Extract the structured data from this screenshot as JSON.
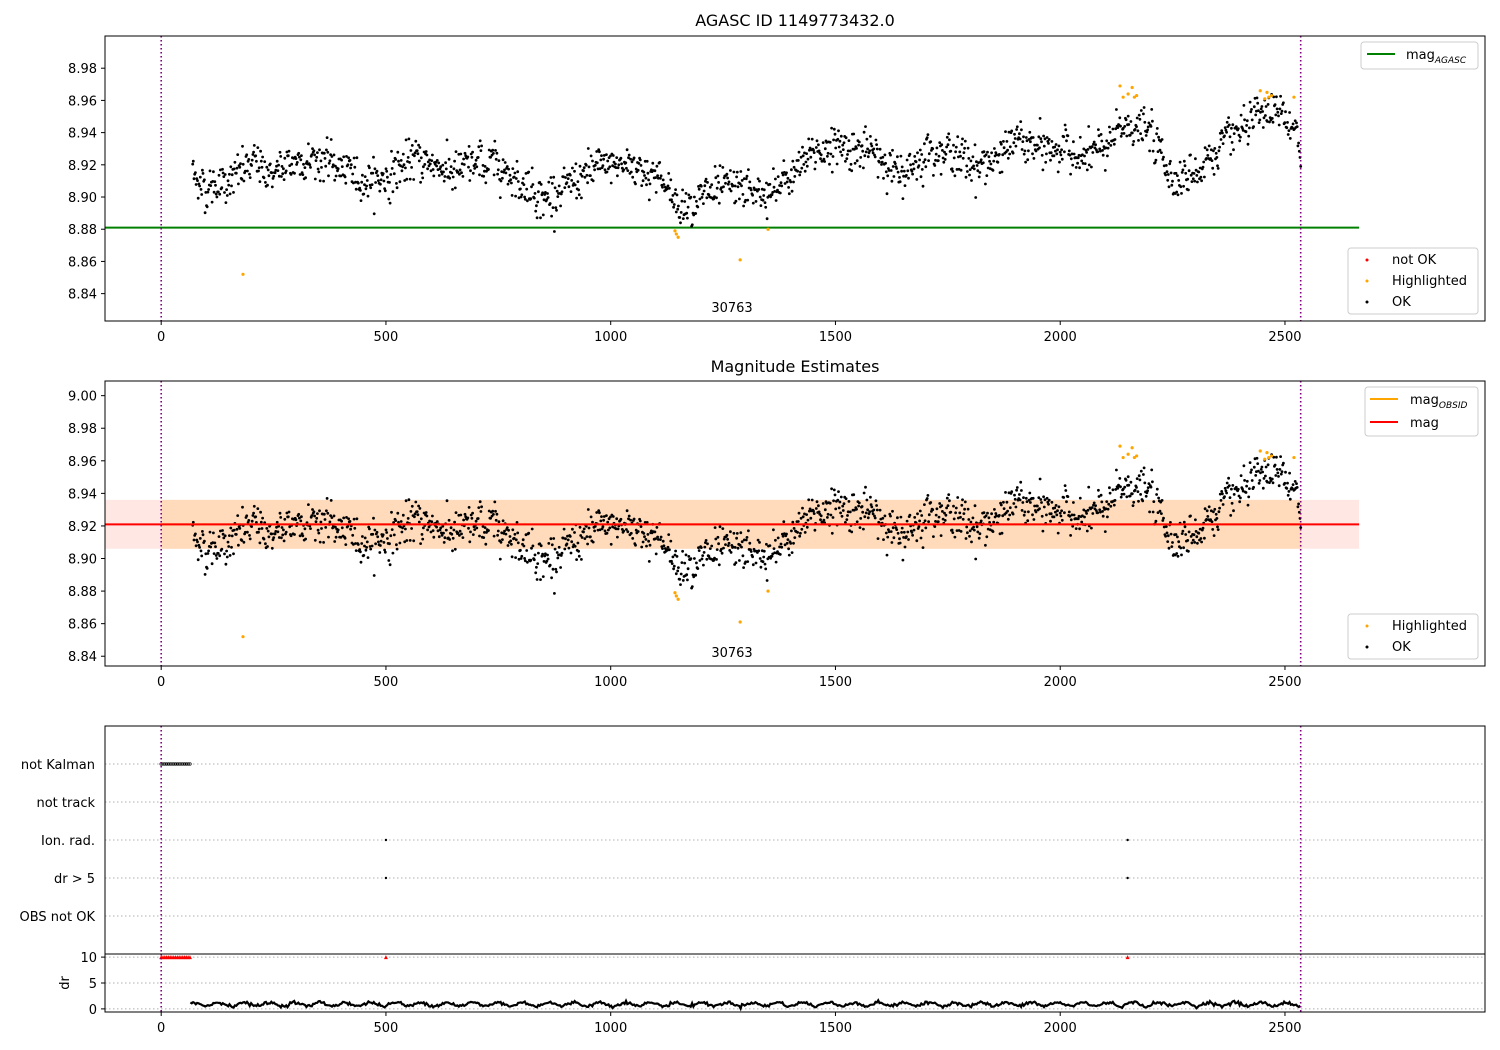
{
  "figure": {
    "title": "AGASC ID 1149773432.0",
    "colors": {
      "ok": "#000000",
      "highlighted": "#ffa500",
      "not_ok": "#ff0000",
      "agasc_line": "#008000",
      "mag_line": "#ff0000",
      "obsid_line": "#ffa500",
      "band_inner": "#ffdab9",
      "band_outer": "#ffe4e1",
      "vline": "#800080",
      "grid": "#b0b0b0"
    }
  },
  "chart_data": [
    {
      "id": "agasc",
      "type": "scatter",
      "title": "AGASC ID 1149773432.0",
      "xlim": [
        -125,
        2945
      ],
      "ylim": [
        8.823,
        9.0
      ],
      "xticks": [
        0,
        500,
        1000,
        1500,
        2000,
        2500
      ],
      "yticks": [
        8.84,
        8.86,
        8.88,
        8.9,
        8.92,
        8.94,
        8.96,
        8.98
      ],
      "ytick_labels": [
        "8.84",
        "8.86",
        "8.88",
        "8.90",
        "8.92",
        "8.94",
        "8.96",
        "8.98"
      ],
      "vlines": [
        0,
        2535
      ],
      "hline": {
        "y": 8.881,
        "x_end": 2665,
        "label": "mag",
        "label_sub": "AGASC"
      },
      "obsid_label": {
        "text": "30763",
        "x": 1265,
        "y": 8.829
      },
      "legend_lines": [
        {
          "label": "mag",
          "sub": "AGASC",
          "color": "#008000"
        }
      ],
      "legend_points": [
        {
          "label": "not OK",
          "color": "#ff0000"
        },
        {
          "label": "Highlighted",
          "color": "#ffa500"
        },
        {
          "label": "OK",
          "color": "#000000"
        }
      ],
      "series_ok_profile": {
        "x": [
          70,
          100,
          150,
          200,
          250,
          300,
          350,
          400,
          450,
          500,
          550,
          600,
          650,
          700,
          750,
          800,
          850,
          900,
          950,
          1000,
          1050,
          1100,
          1150,
          1200,
          1250,
          1300,
          1350,
          1400,
          1450,
          1500,
          1550,
          1600,
          1650,
          1700,
          1750,
          1800,
          1850,
          1900,
          1950,
          2000,
          2050,
          2100,
          2150,
          2200,
          2250,
          2300,
          2350,
          2400,
          2450,
          2500,
          2535
        ],
        "y": [
          8.915,
          8.905,
          8.91,
          8.92,
          8.915,
          8.922,
          8.925,
          8.918,
          8.91,
          8.912,
          8.922,
          8.922,
          8.915,
          8.92,
          8.92,
          8.91,
          8.9,
          8.905,
          8.915,
          8.92,
          8.92,
          8.915,
          8.895,
          8.9,
          8.905,
          8.905,
          8.9,
          8.912,
          8.928,
          8.932,
          8.93,
          8.925,
          8.912,
          8.928,
          8.93,
          8.92,
          8.922,
          8.935,
          8.93,
          8.93,
          8.925,
          8.93,
          8.945,
          8.94,
          8.912,
          8.915,
          8.93,
          8.94,
          8.95,
          8.952,
          8.928
        ],
        "count": 1600,
        "scatter_sd": 0.008
      },
      "highlighted_points": [
        {
          "x": 182,
          "y": 8.852
        },
        {
          "x": 1143,
          "y": 8.879
        },
        {
          "x": 1146,
          "y": 8.877
        },
        {
          "x": 1150,
          "y": 8.875
        },
        {
          "x": 1288,
          "y": 8.861
        },
        {
          "x": 1350,
          "y": 8.88
        },
        {
          "x": 2133,
          "y": 8.969
        },
        {
          "x": 2140,
          "y": 8.962
        },
        {
          "x": 2151,
          "y": 8.964
        },
        {
          "x": 2160,
          "y": 8.968
        },
        {
          "x": 2165,
          "y": 8.962
        },
        {
          "x": 2170,
          "y": 8.963
        },
        {
          "x": 2445,
          "y": 8.966
        },
        {
          "x": 2455,
          "y": 8.961
        },
        {
          "x": 2460,
          "y": 8.965
        },
        {
          "x": 2464,
          "y": 8.962
        },
        {
          "x": 2470,
          "y": 8.963
        },
        {
          "x": 2520,
          "y": 8.962
        }
      ]
    },
    {
      "id": "mag",
      "type": "scatter",
      "title": "Magnitude Estimates",
      "xlim": [
        -125,
        2945
      ],
      "ylim": [
        8.834,
        9.009
      ],
      "xticks": [
        0,
        500,
        1000,
        1500,
        2000,
        2500
      ],
      "yticks": [
        8.84,
        8.86,
        8.88,
        8.9,
        8.92,
        8.94,
        8.96,
        8.98,
        9.0
      ],
      "ytick_labels": [
        "8.84",
        "8.86",
        "8.88",
        "8.90",
        "8.92",
        "8.94",
        "8.96",
        "8.98",
        "9.00"
      ],
      "vlines": [
        0,
        2535
      ],
      "band_outer": {
        "y0": 8.906,
        "y1": 8.936,
        "x0": -125,
        "x1": 2665
      },
      "band_inner": {
        "y0": 8.906,
        "y1": 8.936,
        "x0": 0,
        "x1": 2535
      },
      "mag_line": {
        "y": 8.921,
        "x0": -125,
        "x1": 2665
      },
      "obsid_line": {
        "y": 8.921,
        "x0": 0,
        "x1": 2535
      },
      "obsid_label": {
        "text": "30763",
        "x": 1265,
        "y": 8.84
      },
      "legend_lines": [
        {
          "label": "mag",
          "sub": "OBSID",
          "color": "#ffa500"
        },
        {
          "label": "mag",
          "sub": "",
          "color": "#ff0000"
        }
      ],
      "legend_points": [
        {
          "label": "Highlighted",
          "color": "#ffa500"
        },
        {
          "label": "OK",
          "color": "#000000"
        }
      ]
    },
    {
      "id": "flags",
      "type": "scatter",
      "xlim": [
        -125,
        2945
      ],
      "vlines": [
        0,
        2535
      ],
      "rows": [
        "not Kalman",
        "not track",
        "Ion. rad.",
        "dr > 5",
        "OBS not OK"
      ],
      "flag_points": [
        {
          "row": 0,
          "x_start": 0,
          "x_end": 65,
          "step": 4
        },
        {
          "row": 2,
          "x": 500
        },
        {
          "row": 2,
          "x": 2150
        },
        {
          "row": 3,
          "x": 500
        },
        {
          "row": 3,
          "x": 2150
        }
      ]
    },
    {
      "id": "dr",
      "type": "line",
      "ylabel": "dr",
      "xlim": [
        -125,
        2945
      ],
      "ylim": [
        -0.6,
        10.6
      ],
      "xticks": [
        0,
        500,
        1000,
        1500,
        2000,
        2500
      ],
      "yticks": [
        0,
        5,
        10
      ],
      "ytick_labels": [
        "0",
        "5",
        "10"
      ],
      "vlines": [
        0,
        2535
      ],
      "clipped_markers": [
        {
          "x_start": 0,
          "x_end": 65,
          "step": 4,
          "y": 10
        },
        {
          "x": 500,
          "y": 10
        },
        {
          "x": 2150,
          "y": 10
        }
      ],
      "dr_series": {
        "x_start": 65,
        "x_end": 2535,
        "mean": 0.9,
        "amplitude": 0.6
      }
    }
  ]
}
